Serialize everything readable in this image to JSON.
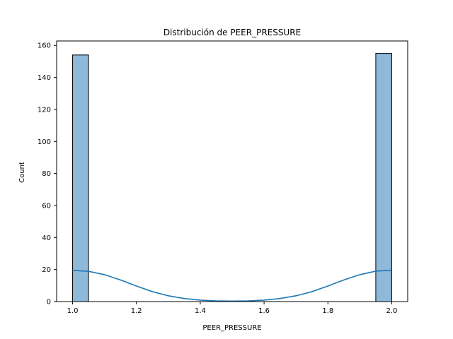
{
  "chart_data": {
    "type": "bar",
    "title": "Distribución de PEER_PRESSURE",
    "xlabel": "PEER_PRESSURE",
    "ylabel": "Count",
    "xlim": [
      0.95,
      2.05
    ],
    "ylim": [
      0,
      162.75
    ],
    "x_ticks": [
      "1.0",
      "1.2",
      "1.4",
      "1.6",
      "1.8",
      "2.0"
    ],
    "x_tick_values": [
      1.0,
      1.2,
      1.4,
      1.6,
      1.8,
      2.0
    ],
    "y_ticks": [
      "0",
      "20",
      "40",
      "60",
      "80",
      "100",
      "120",
      "140",
      "160"
    ],
    "y_tick_values": [
      0,
      20,
      40,
      60,
      80,
      100,
      120,
      140,
      160
    ],
    "bins": [
      {
        "x0": 1.0,
        "x1": 1.05,
        "count": 154
      },
      {
        "x0": 1.95,
        "x1": 2.0,
        "count": 155
      }
    ],
    "kde": {
      "name": "KDE",
      "x": [
        1.0,
        1.05,
        1.1,
        1.15,
        1.2,
        1.25,
        1.3,
        1.35,
        1.4,
        1.45,
        1.5,
        1.55,
        1.6,
        1.65,
        1.7,
        1.75,
        1.8,
        1.85,
        1.9,
        1.95,
        2.0
      ],
      "y": [
        19.5,
        18.9,
        16.8,
        13.5,
        9.7,
        6.2,
        3.6,
        1.9,
        0.9,
        0.4,
        0.3,
        0.4,
        0.9,
        1.9,
        3.6,
        6.2,
        9.7,
        13.5,
        16.8,
        19.0,
        19.6
      ]
    },
    "grid": false,
    "colors": {
      "bar_fill": "#8fb9d9",
      "bar_edge": "#000000",
      "kde_line": "#1f77b4"
    }
  }
}
